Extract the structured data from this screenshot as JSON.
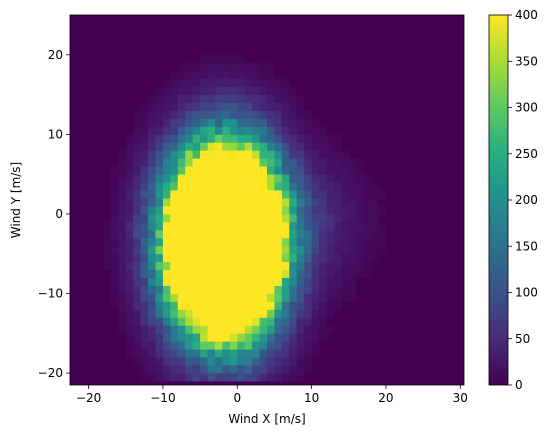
{
  "chart_data": {
    "type": "heatmap",
    "title": "",
    "xlabel": "Wind X [m/s]",
    "ylabel": "Wind Y [m/s]",
    "xlim": [
      -22.5,
      30.5
    ],
    "ylim": [
      -21.5,
      25
    ],
    "x_ticks": [
      -20,
      -10,
      0,
      10,
      20,
      30
    ],
    "y_ticks": [
      -20,
      -10,
      0,
      10,
      20
    ],
    "x_tick_labels": [
      "−20",
      "−10",
      "0",
      "10",
      "20",
      "30"
    ],
    "y_tick_labels": [
      "−20",
      "−10",
      "0",
      "10",
      "20"
    ],
    "bin_size": 1,
    "colormap": "viridis",
    "colorbar": {
      "range": [
        0,
        400
      ],
      "ticks": [
        0,
        50,
        100,
        150,
        200,
        250,
        300,
        350,
        400
      ],
      "tick_labels": [
        "0",
        "50",
        "100",
        "150",
        "200",
        "250",
        "300",
        "350",
        "400"
      ]
    },
    "distribution": {
      "description_values": "binned counts of wind samples",
      "saturated_core": {
        "x_range": [
          -9,
          5
        ],
        "y_range": [
          -14.5,
          7
        ],
        "count_min": 400
      },
      "center": [
        -1.5,
        -3.5
      ],
      "max_count": 400
    },
    "background_color": "#440154",
    "saturated_color": "#fde725"
  }
}
